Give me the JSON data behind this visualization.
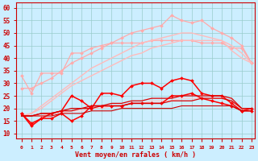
{
  "background_color": "#cceeff",
  "grid_color": "#99cccc",
  "xlabel": "Vent moyen/en rafales ( km/h )",
  "xlabel_color": "#cc0000",
  "tick_color": "#cc0000",
  "xlim": [
    -0.5,
    23.3
  ],
  "ylim": [
    8,
    62
  ],
  "yticks": [
    10,
    15,
    20,
    25,
    30,
    35,
    40,
    45,
    50,
    55,
    60
  ],
  "xticks": [
    0,
    1,
    2,
    3,
    4,
    5,
    6,
    7,
    8,
    9,
    10,
    11,
    12,
    13,
    14,
    15,
    16,
    17,
    18,
    19,
    20,
    21,
    22,
    23
  ],
  "series": [
    {
      "color": "#ffaaaa",
      "linewidth": 0.9,
      "marker": "D",
      "markersize": 2.0,
      "values": [
        33,
        26,
        34,
        34,
        34,
        42,
        42,
        44,
        45,
        46,
        46,
        46,
        46,
        47,
        47,
        47,
        47,
        47,
        46,
        46,
        46,
        44,
        44,
        38
      ]
    },
    {
      "color": "#ffaaaa",
      "linewidth": 0.9,
      "marker": "D",
      "markersize": 2.0,
      "values": [
        28,
        28,
        30,
        32,
        35,
        38,
        40,
        42,
        44,
        46,
        48,
        50,
        51,
        52,
        53,
        57,
        55,
        54,
        55,
        52,
        50,
        48,
        45,
        38
      ]
    },
    {
      "color": "#ffbbbb",
      "linewidth": 1.0,
      "marker": null,
      "markersize": 0,
      "values": [
        17,
        18,
        20,
        23,
        26,
        29,
        31,
        33,
        35,
        37,
        39,
        41,
        42,
        44,
        45,
        46,
        47,
        47,
        47,
        47,
        47,
        45,
        42,
        38
      ]
    },
    {
      "color": "#ffbbbb",
      "linewidth": 1.0,
      "marker": null,
      "markersize": 0,
      "values": [
        17,
        18,
        21,
        24,
        27,
        30,
        33,
        36,
        38,
        40,
        42,
        44,
        46,
        47,
        48,
        49,
        50,
        50,
        49,
        48,
        47,
        43,
        40,
        38
      ]
    },
    {
      "color": "#ffcccc",
      "linewidth": 0.9,
      "marker": null,
      "markersize": 0,
      "values": [
        17,
        17,
        17,
        18,
        18,
        19,
        19,
        20,
        20,
        21,
        21,
        22,
        22,
        23,
        23,
        23,
        24,
        24,
        24,
        24,
        24,
        23,
        20,
        19
      ]
    },
    {
      "color": "#ff0000",
      "linewidth": 1.1,
      "marker": "D",
      "markersize": 2.0,
      "values": [
        18,
        14,
        16,
        18,
        19,
        25,
        23,
        20,
        26,
        26,
        25,
        29,
        30,
        30,
        28,
        31,
        32,
        31,
        26,
        25,
        25,
        22,
        19,
        20
      ]
    },
    {
      "color": "#ff0000",
      "linewidth": 1.1,
      "marker": "D",
      "markersize": 2.0,
      "values": [
        18,
        13,
        16,
        16,
        18,
        15,
        17,
        21,
        21,
        21,
        21,
        22,
        22,
        22,
        22,
        25,
        25,
        26,
        24,
        23,
        22,
        21,
        19,
        19
      ]
    },
    {
      "color": "#dd0000",
      "linewidth": 0.9,
      "marker": null,
      "markersize": 0,
      "values": [
        17,
        17,
        18,
        18,
        19,
        19,
        20,
        20,
        21,
        21,
        21,
        22,
        22,
        22,
        22,
        23,
        23,
        23,
        24,
        24,
        24,
        23,
        20,
        20
      ]
    },
    {
      "color": "#dd0000",
      "linewidth": 0.9,
      "marker": null,
      "markersize": 0,
      "values": [
        17,
        17,
        18,
        18,
        19,
        20,
        20,
        21,
        21,
        22,
        22,
        23,
        23,
        24,
        24,
        24,
        25,
        25,
        25,
        25,
        25,
        24,
        20,
        20
      ]
    },
    {
      "color": "#cc0000",
      "linewidth": 0.8,
      "marker": null,
      "markersize": 0,
      "values": [
        17,
        17,
        17,
        17,
        18,
        18,
        18,
        19,
        19,
        19,
        20,
        20,
        20,
        20,
        20,
        20,
        21,
        21,
        21,
        21,
        21,
        21,
        19,
        19
      ]
    }
  ]
}
